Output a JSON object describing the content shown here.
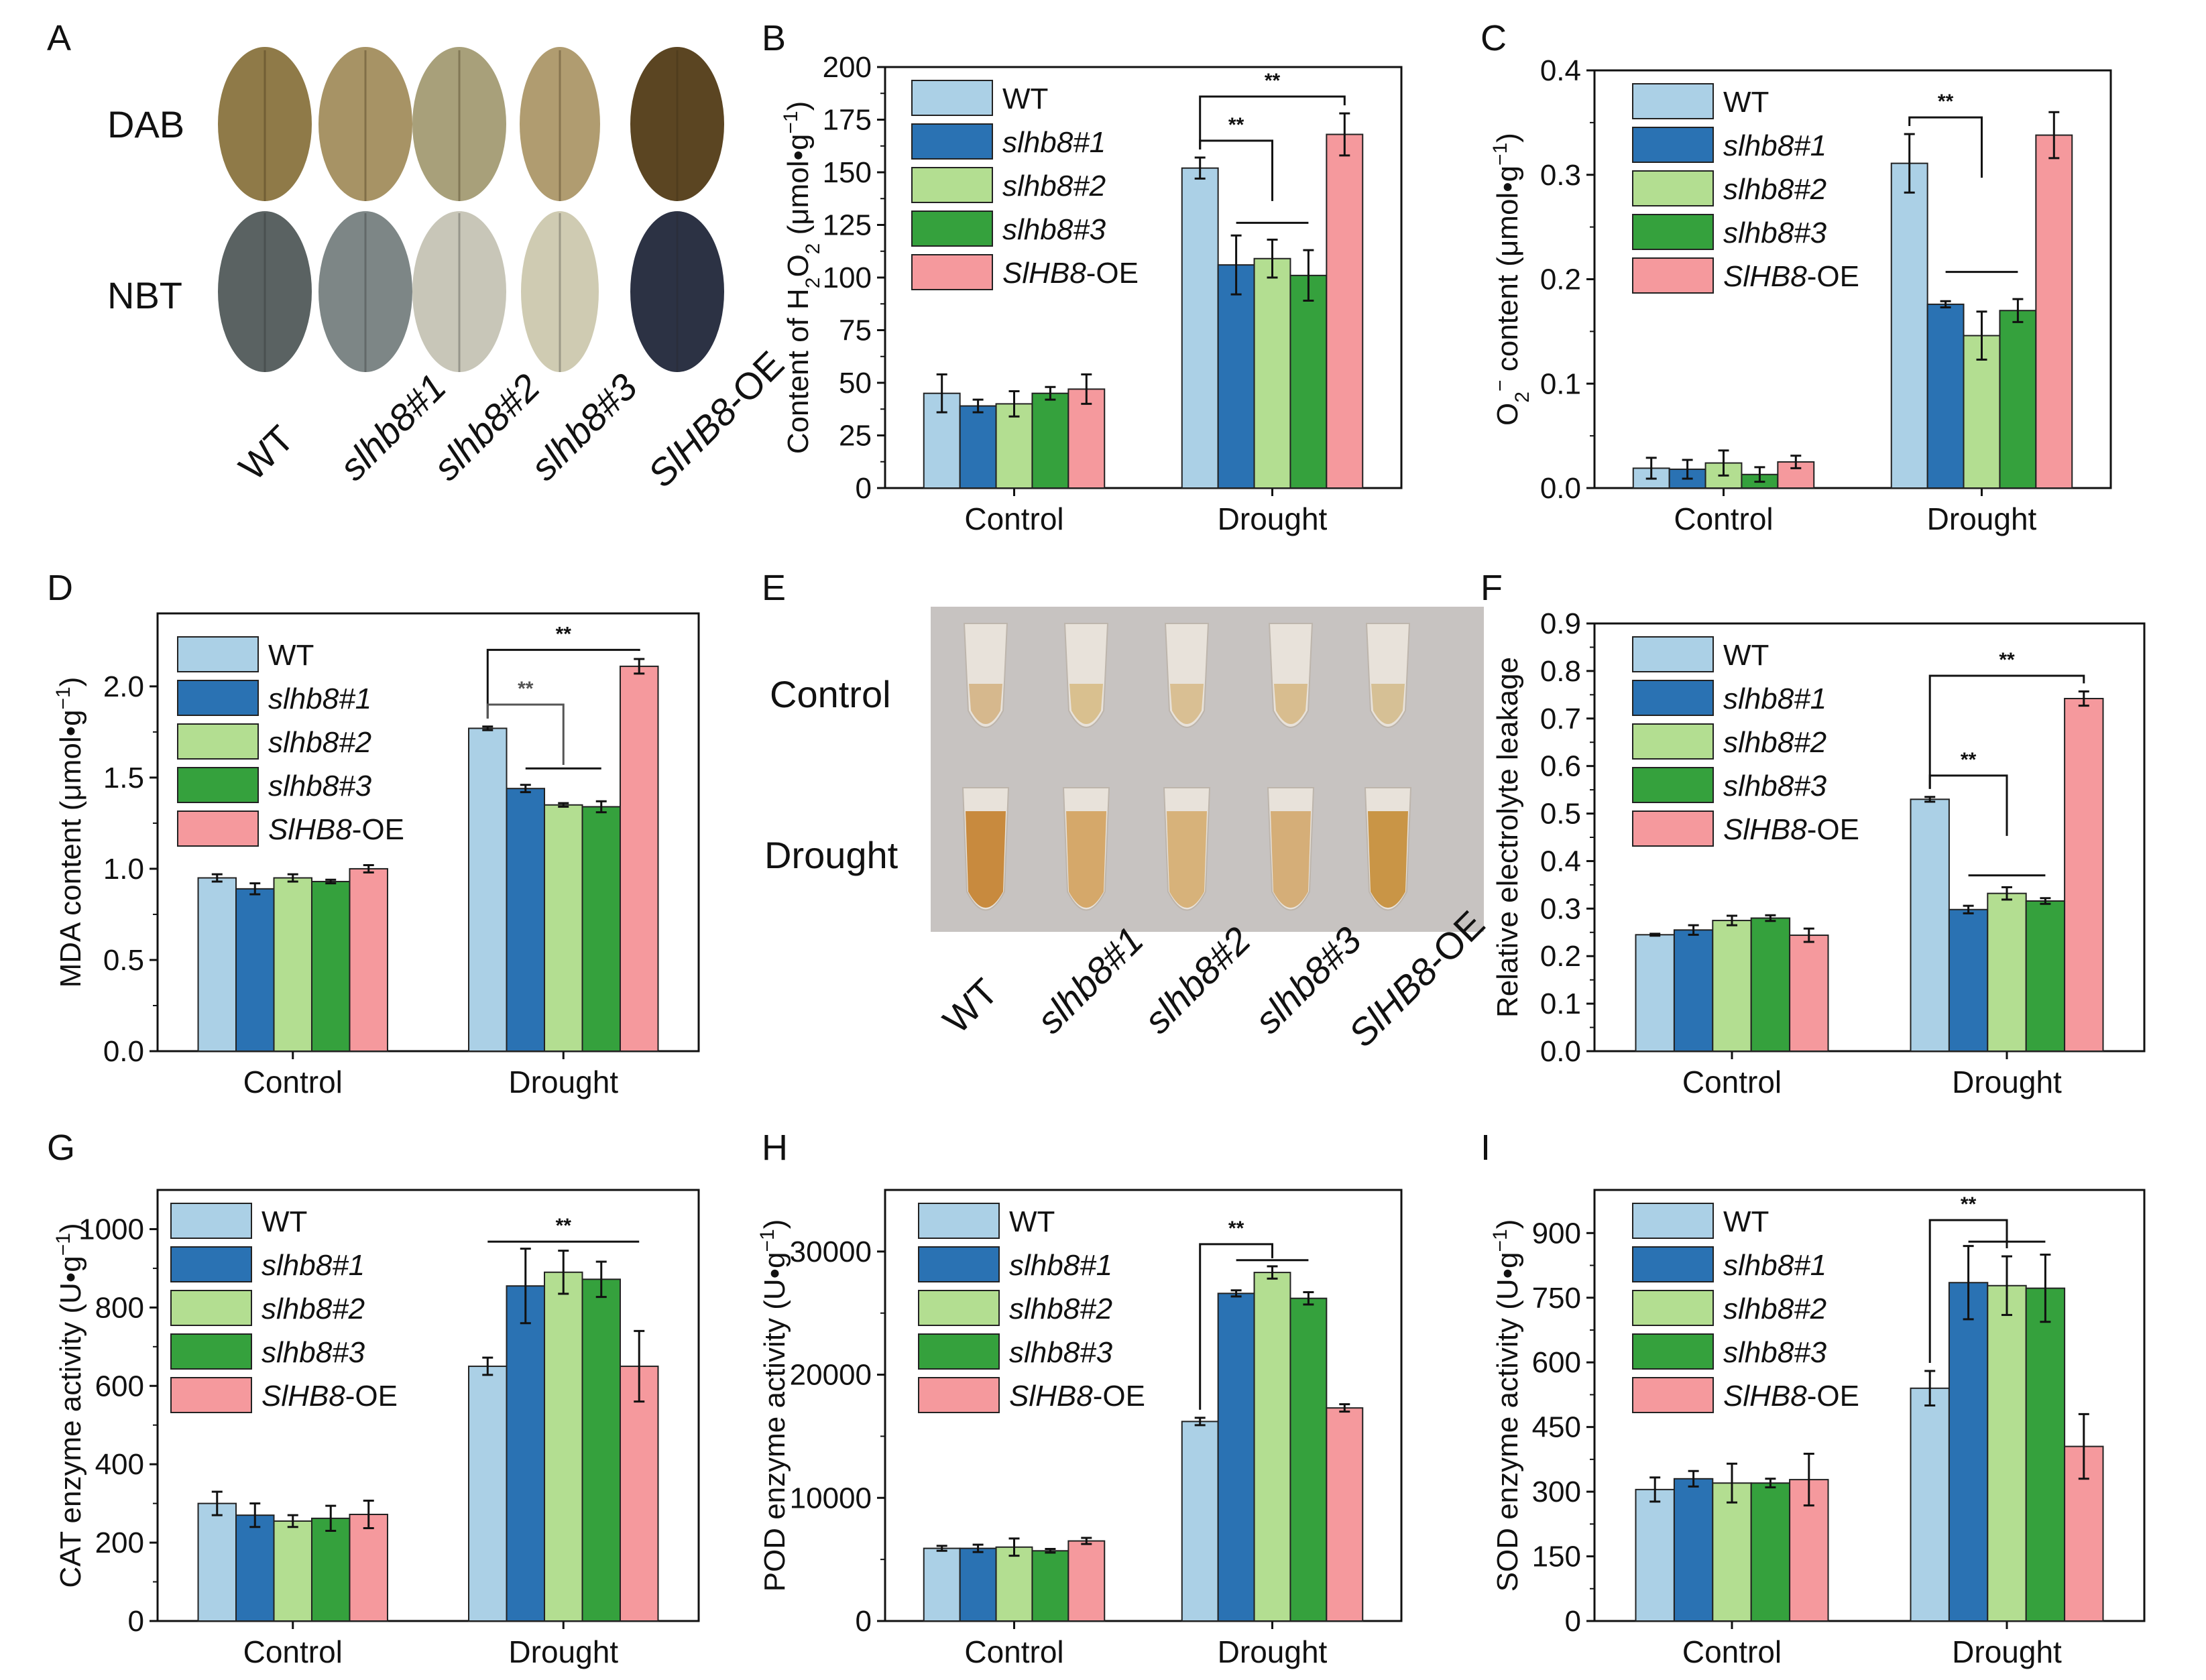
{
  "colors": {
    "WT": "#abd0e6",
    "slhb8#1": "#2a72b3",
    "slhb8#2": "#b3de91",
    "slhb8#3": "#35a13d",
    "SlHB8-OE": "#f5999d"
  },
  "legend": [
    {
      "key": "WT",
      "italic": "",
      "suffix": "WT"
    },
    {
      "key": "slhb8#1",
      "italic": "slhb8#1",
      "suffix": ""
    },
    {
      "key": "slhb8#2",
      "italic": "slhb8#2",
      "suffix": ""
    },
    {
      "key": "slhb8#3",
      "italic": "slhb8#3",
      "suffix": ""
    },
    {
      "key": "SlHB8-OE",
      "italic": "SlHB8",
      "suffix": "-OE"
    }
  ],
  "photo_A": {
    "label": "A",
    "rows": [
      "DAB",
      "NBT"
    ],
    "columns": [
      {
        "italic": "",
        "normal": "WT"
      },
      {
        "italic": "slhb8#1",
        "normal": ""
      },
      {
        "italic": "slhb8#2",
        "normal": ""
      },
      {
        "italic": "slhb8#3",
        "normal": ""
      },
      {
        "italic": "SlHB8",
        "normal": "-OE"
      }
    ]
  },
  "photo_E": {
    "label": "E",
    "rows": [
      "Control",
      "Drought"
    ],
    "columns": [
      {
        "italic": "",
        "normal": "WT"
      },
      {
        "italic": "slhb8#1",
        "normal": ""
      },
      {
        "italic": "slhb8#2",
        "normal": ""
      },
      {
        "italic": "slhb8#3",
        "normal": ""
      },
      {
        "italic": "SlHB8",
        "normal": "-OE"
      }
    ]
  },
  "chart_data": [
    {
      "id": "B",
      "label": "B",
      "type": "bar",
      "ylabel_parts": [
        "Content of H",
        "2",
        "O",
        "2",
        " (μmol•g",
        "−1",
        ")"
      ],
      "ylim": [
        0,
        200
      ],
      "yticks": [
        0,
        25,
        50,
        75,
        100,
        125,
        150,
        175,
        200
      ],
      "categories": [
        "Control",
        "Drought"
      ],
      "series": [
        {
          "name": "WT",
          "values": [
            45,
            152
          ],
          "errors": [
            9,
            5
          ]
        },
        {
          "name": "slhb8#1",
          "values": [
            39,
            106
          ],
          "errors": [
            3,
            14
          ]
        },
        {
          "name": "slhb8#2",
          "values": [
            40,
            109
          ],
          "errors": [
            6,
            9
          ]
        },
        {
          "name": "slhb8#3",
          "values": [
            45,
            101
          ],
          "errors": [
            3,
            12
          ]
        },
        {
          "name": "SlHB8-OE",
          "values": [
            47,
            168
          ],
          "errors": [
            7,
            10
          ]
        }
      ],
      "significance": [
        {
          "text": "**",
          "type": "bracket",
          "from": 0,
          "to": 4,
          "y": 186,
          "gray": false
        },
        {
          "text": "**",
          "type": "bracket",
          "from": 0,
          "to": 2,
          "y": 165,
          "gray": false
        },
        {
          "text": "",
          "type": "line",
          "from": 1,
          "to": 3,
          "y": 126,
          "gray": false
        }
      ]
    },
    {
      "id": "C",
      "label": "C",
      "type": "bar",
      "ylabel_parts": [
        "O",
        "2",
        "−",
        " content (μmol•g",
        "−1",
        ")"
      ],
      "ylim": [
        0,
        0.4
      ],
      "yticks": [
        0.0,
        0.1,
        0.2,
        0.3,
        0.4
      ],
      "ytickfmt": 1,
      "categories": [
        "Control",
        "Drought"
      ],
      "series": [
        {
          "name": "WT",
          "values": [
            0.019,
            0.311
          ],
          "errors": [
            0.01,
            0.028
          ]
        },
        {
          "name": "slhb8#1",
          "values": [
            0.018,
            0.176
          ],
          "errors": [
            0.009,
            0.003
          ]
        },
        {
          "name": "slhb8#2",
          "values": [
            0.024,
            0.146
          ],
          "errors": [
            0.012,
            0.023
          ]
        },
        {
          "name": "slhb8#3",
          "values": [
            0.013,
            0.17
          ],
          "errors": [
            0.007,
            0.011
          ]
        },
        {
          "name": "SlHB8-OE",
          "values": [
            0.025,
            0.338
          ],
          "errors": [
            0.006,
            0.022
          ]
        }
      ],
      "significance": [
        {
          "text": "**",
          "type": "bracket",
          "from": 0,
          "to": 2,
          "y": 0.355,
          "gray": false
        },
        {
          "text": "",
          "type": "line",
          "from": 1,
          "to": 3,
          "y": 0.207,
          "gray": false
        }
      ]
    },
    {
      "id": "D",
      "label": "D",
      "type": "bar",
      "ylabel_parts": [
        "MDA content (μmol•g",
        "−1",
        ")"
      ],
      "ylim": [
        0,
        2.4
      ],
      "yticks": [
        0.0,
        0.5,
        1.0,
        1.5,
        2.0
      ],
      "ytickfmt": 1,
      "categories": [
        "Control",
        "Drought"
      ],
      "series": [
        {
          "name": "WT",
          "values": [
            0.95,
            1.77
          ],
          "errors": [
            0.02,
            0.01
          ]
        },
        {
          "name": "slhb8#1",
          "values": [
            0.89,
            1.44
          ],
          "errors": [
            0.03,
            0.02
          ]
        },
        {
          "name": "slhb8#2",
          "values": [
            0.95,
            1.35
          ],
          "errors": [
            0.02,
            0.01
          ]
        },
        {
          "name": "slhb8#3",
          "values": [
            0.93,
            1.34
          ],
          "errors": [
            0.01,
            0.03
          ]
        },
        {
          "name": "SlHB8-OE",
          "values": [
            1.0,
            2.11
          ],
          "errors": [
            0.02,
            0.04
          ]
        }
      ],
      "significance": [
        {
          "text": "**",
          "type": "bracket",
          "from": 0,
          "to": 4,
          "y": 2.2,
          "gray": false
        },
        {
          "text": "**",
          "type": "bracket",
          "from": 0,
          "to": 2,
          "y": 1.9,
          "gray": true
        },
        {
          "text": "",
          "type": "line",
          "from": 1,
          "to": 3,
          "y": 1.55,
          "gray": false
        }
      ]
    },
    {
      "id": "F",
      "label": "F",
      "type": "bar",
      "ylabel_parts": [
        "Relative electrolyte leakage"
      ],
      "ylim": [
        0,
        0.9
      ],
      "yticks": [
        0.0,
        0.1,
        0.2,
        0.3,
        0.4,
        0.5,
        0.6,
        0.7,
        0.8,
        0.9
      ],
      "ytickfmt": 1,
      "categories": [
        "Control",
        "Drought"
      ],
      "series": [
        {
          "name": "WT",
          "values": [
            0.245,
            0.53
          ],
          "errors": [
            0.002,
            0.005
          ]
        },
        {
          "name": "slhb8#1",
          "values": [
            0.255,
            0.298
          ],
          "errors": [
            0.01,
            0.008
          ]
        },
        {
          "name": "slhb8#2",
          "values": [
            0.275,
            0.332
          ],
          "errors": [
            0.01,
            0.013
          ]
        },
        {
          "name": "slhb8#3",
          "values": [
            0.28,
            0.316
          ],
          "errors": [
            0.006,
            0.006
          ]
        },
        {
          "name": "SlHB8-OE",
          "values": [
            0.244,
            0.742
          ],
          "errors": [
            0.014,
            0.015
          ]
        }
      ],
      "significance": [
        {
          "text": "**",
          "type": "bracket",
          "from": 0,
          "to": 4,
          "y": 0.79,
          "gray": false
        },
        {
          "text": "**",
          "type": "bracket",
          "from": 0,
          "to": 2,
          "y": 0.58,
          "gray": false
        },
        {
          "text": "",
          "type": "line",
          "from": 1,
          "to": 3,
          "y": 0.37,
          "gray": false
        }
      ]
    },
    {
      "id": "G",
      "label": "G",
      "type": "bar",
      "ylabel_parts": [
        "CAT enzyme activity (U•g",
        "−1",
        ")"
      ],
      "ylim": [
        0,
        1100
      ],
      "yticks": [
        0,
        200,
        400,
        600,
        800,
        1000
      ],
      "categories": [
        "Control",
        "Drought"
      ],
      "series": [
        {
          "name": "WT",
          "values": [
            300,
            650
          ],
          "errors": [
            30,
            22
          ]
        },
        {
          "name": "slhb8#1",
          "values": [
            270,
            855
          ],
          "errors": [
            30,
            95
          ]
        },
        {
          "name": "slhb8#2",
          "values": [
            255,
            890
          ],
          "errors": [
            15,
            55
          ]
        },
        {
          "name": "slhb8#3",
          "values": [
            262,
            872
          ],
          "errors": [
            32,
            45
          ]
        },
        {
          "name": "SlHB8-OE",
          "values": [
            272,
            650
          ],
          "errors": [
            35,
            90
          ]
        }
      ],
      "significance": [
        {
          "text": "**",
          "type": "line",
          "from": 0,
          "to": 4,
          "y": 968,
          "gray": false
        }
      ]
    },
    {
      "id": "H",
      "label": "H",
      "type": "bar",
      "ylabel_parts": [
        "POD enzyme activity (U•g",
        "−1",
        ")"
      ],
      "ylim": [
        0,
        35000
      ],
      "yticks": [
        0,
        10000,
        20000,
        30000
      ],
      "categories": [
        "Control",
        "Drought"
      ],
      "series": [
        {
          "name": "WT",
          "values": [
            5900,
            16200
          ],
          "errors": [
            200,
            300
          ]
        },
        {
          "name": "slhb8#1",
          "values": [
            5900,
            26600
          ],
          "errors": [
            300,
            250
          ]
        },
        {
          "name": "slhb8#2",
          "values": [
            6000,
            28300
          ],
          "errors": [
            700,
            500
          ]
        },
        {
          "name": "slhb8#3",
          "values": [
            5700,
            26200
          ],
          "errors": [
            150,
            500
          ]
        },
        {
          "name": "SlHB8-OE",
          "values": [
            6500,
            17300
          ],
          "errors": [
            250,
            300
          ]
        }
      ],
      "significance": [
        {
          "text": "**",
          "type": "bracket",
          "from": 0,
          "to": 2,
          "y": 30600,
          "gray": false
        },
        {
          "text": "",
          "type": "line",
          "from": 1,
          "to": 3,
          "y": 29300,
          "gray": false
        }
      ]
    },
    {
      "id": "I",
      "label": "I",
      "type": "bar",
      "ylabel_parts": [
        "SOD enzyme activity (U•g",
        "−1",
        ")"
      ],
      "ylim": [
        0,
        1000
      ],
      "yticks": [
        0,
        150,
        300,
        450,
        600,
        750,
        900
      ],
      "categories": [
        "Control",
        "Drought"
      ],
      "series": [
        {
          "name": "WT",
          "values": [
            305,
            540
          ],
          "errors": [
            28,
            40
          ]
        },
        {
          "name": "slhb8#1",
          "values": [
            330,
            785
          ],
          "errors": [
            18,
            85
          ]
        },
        {
          "name": "slhb8#2",
          "values": [
            320,
            778
          ],
          "errors": [
            45,
            68
          ]
        },
        {
          "name": "slhb8#3",
          "values": [
            320,
            772
          ],
          "errors": [
            10,
            78
          ]
        },
        {
          "name": "SlHB8-OE",
          "values": [
            328,
            405
          ],
          "errors": [
            60,
            75
          ]
        }
      ],
      "significance": [
        {
          "text": "**",
          "type": "bracket",
          "from": 0,
          "to": 2,
          "y": 930,
          "gray": false
        },
        {
          "text": "",
          "type": "line",
          "from": 1,
          "to": 3,
          "y": 880,
          "gray": false
        }
      ]
    }
  ]
}
